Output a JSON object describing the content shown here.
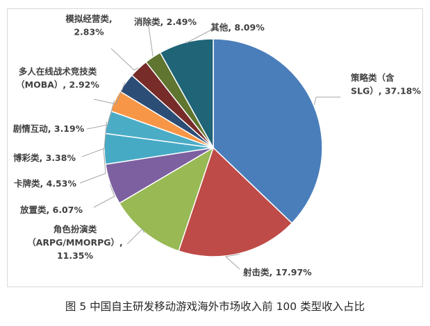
{
  "chart_data": {
    "type": "pie",
    "title": "",
    "slices": [
      {
        "label": "策略类（含SLG）",
        "value": 37.18,
        "color": "#4a7ebb",
        "text": [
          "策略类（含",
          "SLG）, 37.18%"
        ]
      },
      {
        "label": "射击类",
        "value": 17.97,
        "color": "#be4b48",
        "text": [
          "射击类, 17.97%"
        ]
      },
      {
        "label": "角色扮演类（ARPG/MMORPG）",
        "value": 11.35,
        "color": "#98b954",
        "text": [
          "角色扮演类",
          "（ARPG/MMORPG）,",
          "11.35%"
        ]
      },
      {
        "label": "放置类",
        "value": 6.07,
        "color": "#7d60a0",
        "text": [
          "放置类, 6.07%"
        ]
      },
      {
        "label": "卡牌类",
        "value": 4.53,
        "color": "#46aac5",
        "text": [
          "卡牌类, 4.53%"
        ]
      },
      {
        "label": "博彩类",
        "value": 3.38,
        "color": "#4bacc6",
        "text": [
          "博彩类, 3.38%"
        ]
      },
      {
        "label": "剧情互动",
        "value": 3.19,
        "color": "#f79646",
        "text": [
          "剧情互动, 3.19%"
        ]
      },
      {
        "label": "多人在线战术竞技类（MOBA）",
        "value": 2.92,
        "color": "#2c4d75",
        "text": [
          "多人在线战术竞技类",
          "（MOBA）, 2.92%"
        ]
      },
      {
        "label": "模拟经营类",
        "value": 2.83,
        "color": "#772c2a",
        "text": [
          "模拟经营类,",
          "2.83%"
        ]
      },
      {
        "label": "消除类",
        "value": 2.49,
        "color": "#5f7530",
        "text": [
          "消除类, 2.49%"
        ]
      },
      {
        "label": "其他",
        "value": 8.09,
        "color": "#4d3b62",
        "text": [
          "其他, 8.09%"
        ]
      }
    ],
    "colors_note": ""
  },
  "caption": "图 5  中国自主研发移动游戏海外市场收入前 100 类型收入占比"
}
